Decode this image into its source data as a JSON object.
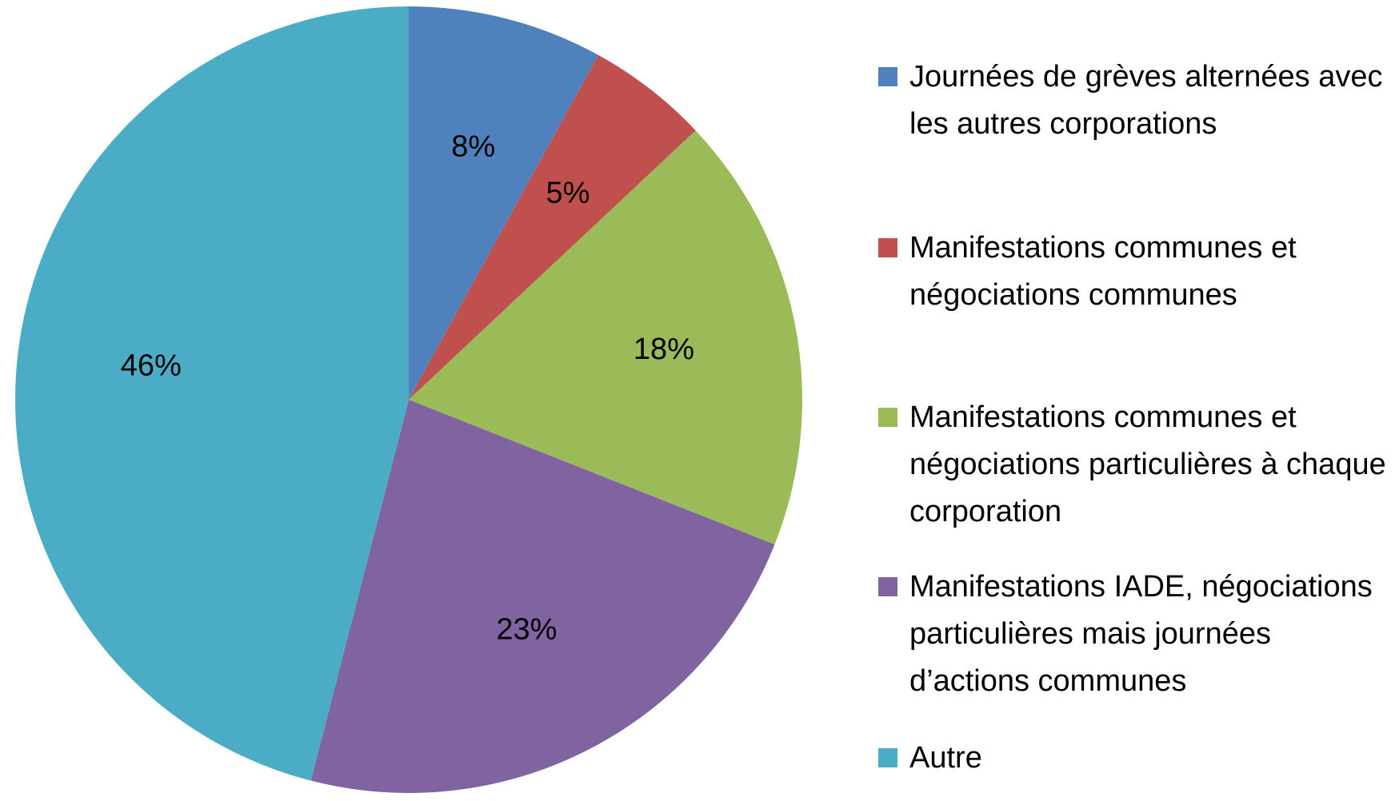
{
  "chart_data": {
    "type": "pie",
    "categories": [
      "Journées de grèves alternées avec les autres corporations",
      "Manifestations communes et négociations communes",
      "Manifestations communes et négociations particulières à chaque corporation",
      "Manifestations IADE, négociations particulières mais journées d’actions communes",
      "Autre"
    ],
    "values": [
      8,
      5,
      18,
      23,
      46
    ],
    "value_labels": [
      "8%",
      "5%",
      "18%",
      "23%",
      "46%"
    ],
    "colors": [
      "#4f81bd",
      "#c0504d",
      "#9bbb59",
      "#8064a2",
      "#4bacc6"
    ],
    "legend": "right"
  }
}
